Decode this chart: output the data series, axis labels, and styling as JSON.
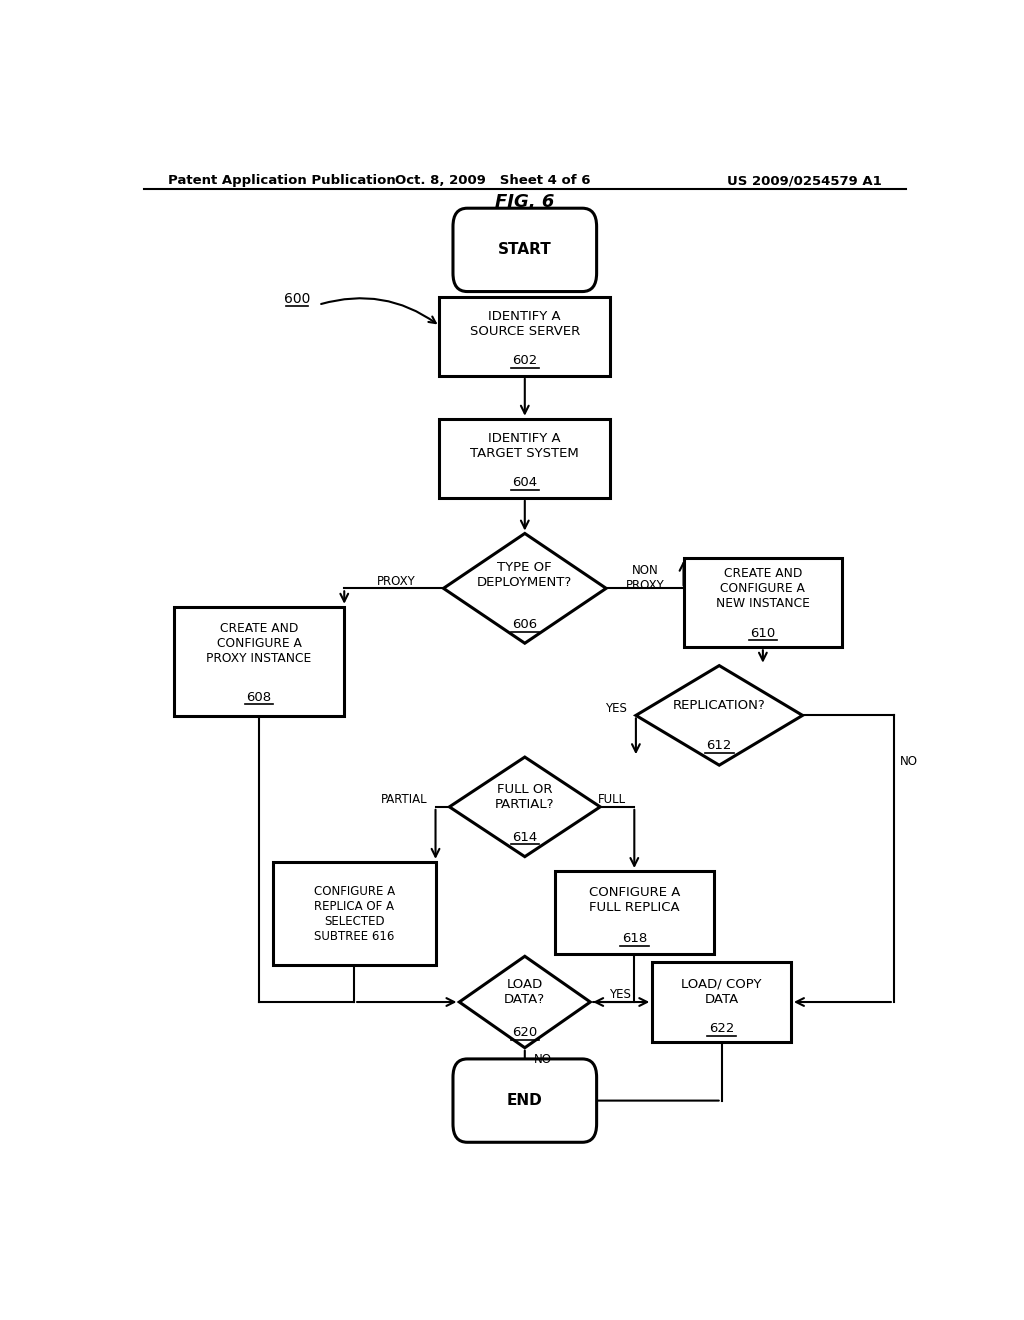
{
  "bg_color": "#ffffff",
  "header_left": "Patent Application Publication",
  "header_center": "Oct. 8, 2009   Sheet 4 of 6",
  "header_right": "US 2009/0254579 A1",
  "fig_title": "FIG. 6",
  "label_600": "600"
}
